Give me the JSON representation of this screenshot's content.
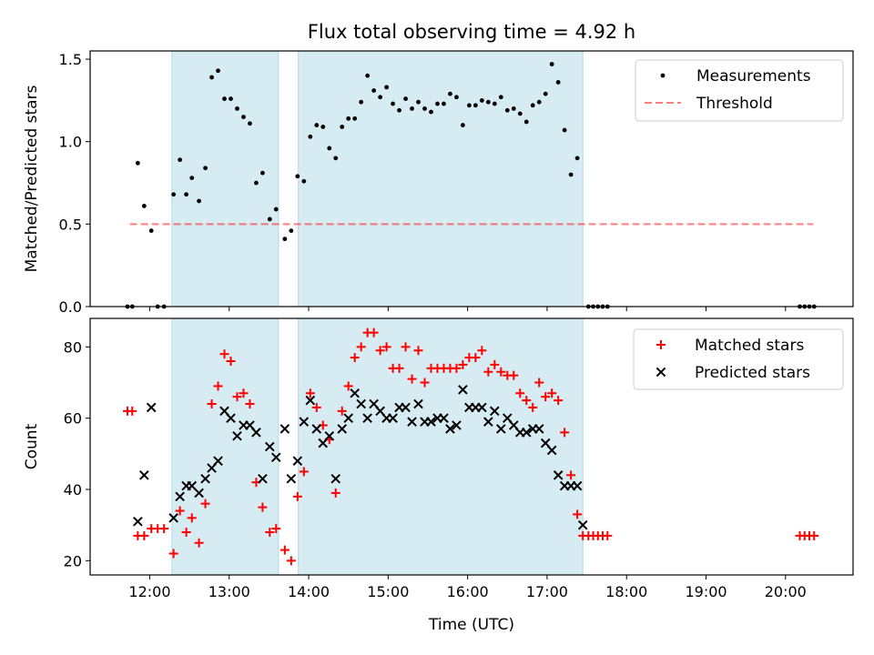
{
  "chart_data": {
    "title": "Flux total observing time = 4.92 h",
    "xlabel": "Time (UTC)",
    "x_unit": "hours UTC",
    "xlim": [
      11.25,
      20.85
    ],
    "x_ticks": [
      {
        "value": 12,
        "label": "12:00"
      },
      {
        "value": 13,
        "label": "13:00"
      },
      {
        "value": 14,
        "label": "14:00"
      },
      {
        "value": 15,
        "label": "15:00"
      },
      {
        "value": 16,
        "label": "16:00"
      },
      {
        "value": 17,
        "label": "17:00"
      },
      {
        "value": 18,
        "label": "18:00"
      },
      {
        "value": 19,
        "label": "19:00"
      },
      {
        "value": 20,
        "label": "20:00"
      }
    ],
    "observing_windows": [
      [
        12.28,
        13.62
      ],
      [
        13.87,
        17.45
      ]
    ],
    "panels": [
      {
        "type": "scatter",
        "ylabel": "Matched/Predicted stars",
        "ylim": [
          0,
          1.55
        ],
        "y_ticks": [
          {
            "value": 0,
            "label": "0.0"
          },
          {
            "value": 0.5,
            "label": "0.5"
          },
          {
            "value": 1.0,
            "label": "1.0"
          },
          {
            "value": 1.5,
            "label": "1.5"
          }
        ],
        "legend": [
          "Measurements",
          "Threshold"
        ],
        "legend_position": "top-right",
        "threshold": {
          "name": "Threshold",
          "value": 0.5,
          "x": [
            11.75,
            20.35
          ]
        },
        "measurements": {
          "name": "Measurements",
          "points": [
            [
              11.72,
              0
            ],
            [
              11.78,
              0
            ],
            [
              11.85,
              0.87
            ],
            [
              11.93,
              0.61
            ],
            [
              12.02,
              0.46
            ],
            [
              12.1,
              0
            ],
            [
              12.18,
              0
            ],
            [
              12.3,
              0.68
            ],
            [
              12.38,
              0.89
            ],
            [
              12.46,
              0.68
            ],
            [
              12.53,
              0.78
            ],
            [
              12.62,
              0.64
            ],
            [
              12.7,
              0.84
            ],
            [
              12.78,
              1.39
            ],
            [
              12.86,
              1.43
            ],
            [
              12.94,
              1.26
            ],
            [
              13.02,
              1.26
            ],
            [
              13.1,
              1.2
            ],
            [
              13.18,
              1.15
            ],
            [
              13.26,
              1.11
            ],
            [
              13.34,
              0.75
            ],
            [
              13.42,
              0.81
            ],
            [
              13.51,
              0.53
            ],
            [
              13.59,
              0.59
            ],
            [
              13.7,
              0.41
            ],
            [
              13.78,
              0.46
            ],
            [
              13.86,
              0.79
            ],
            [
              13.94,
              0.76
            ],
            [
              14.02,
              1.03
            ],
            [
              14.1,
              1.1
            ],
            [
              14.18,
              1.09
            ],
            [
              14.26,
              0.96
            ],
            [
              14.34,
              0.9
            ],
            [
              14.42,
              1.09
            ],
            [
              14.5,
              1.14
            ],
            [
              14.58,
              1.14
            ],
            [
              14.66,
              1.24
            ],
            [
              14.74,
              1.4
            ],
            [
              14.82,
              1.31
            ],
            [
              14.9,
              1.27
            ],
            [
              14.98,
              1.33
            ],
            [
              15.06,
              1.23
            ],
            [
              15.14,
              1.19
            ],
            [
              15.22,
              1.26
            ],
            [
              15.3,
              1.2
            ],
            [
              15.38,
              1.24
            ],
            [
              15.46,
              1.2
            ],
            [
              15.54,
              1.18
            ],
            [
              15.62,
              1.23
            ],
            [
              15.7,
              1.23
            ],
            [
              15.78,
              1.29
            ],
            [
              15.86,
              1.27
            ],
            [
              15.94,
              1.1
            ],
            [
              16.02,
              1.22
            ],
            [
              16.1,
              1.22
            ],
            [
              16.18,
              1.25
            ],
            [
              16.26,
              1.24
            ],
            [
              16.34,
              1.23
            ],
            [
              16.42,
              1.27
            ],
            [
              16.5,
              1.19
            ],
            [
              16.58,
              1.2
            ],
            [
              16.66,
              1.17
            ],
            [
              16.74,
              1.12
            ],
            [
              16.82,
              1.22
            ],
            [
              16.9,
              1.24
            ],
            [
              16.98,
              1.29
            ],
            [
              17.06,
              1.47
            ],
            [
              17.14,
              1.36
            ],
            [
              17.22,
              1.07
            ],
            [
              17.3,
              0.8
            ],
            [
              17.38,
              0.9
            ],
            [
              17.52,
              0
            ],
            [
              17.58,
              0
            ],
            [
              17.64,
              0
            ],
            [
              17.7,
              0
            ],
            [
              17.76,
              0
            ],
            [
              20.18,
              0
            ],
            [
              20.24,
              0
            ],
            [
              20.3,
              0
            ],
            [
              20.36,
              0
            ]
          ]
        }
      },
      {
        "type": "scatter",
        "ylabel": "Count",
        "ylim": [
          16,
          88
        ],
        "y_ticks": [
          {
            "value": 20,
            "label": "20"
          },
          {
            "value": 40,
            "label": "40"
          },
          {
            "value": 60,
            "label": "60"
          },
          {
            "value": 80,
            "label": "80"
          }
        ],
        "legend": [
          "Matched stars",
          "Predicted stars"
        ],
        "legend_position": "top-right",
        "series": [
          {
            "name": "Matched stars",
            "marker": "+",
            "color": "#ff0000",
            "points": [
              [
                11.72,
                62
              ],
              [
                11.78,
                62
              ],
              [
                11.85,
                27
              ],
              [
                11.93,
                27
              ],
              [
                12.02,
                29
              ],
              [
                12.1,
                29
              ],
              [
                12.18,
                29
              ],
              [
                12.3,
                22
              ],
              [
                12.38,
                34
              ],
              [
                12.46,
                28
              ],
              [
                12.53,
                32
              ],
              [
                12.62,
                25
              ],
              [
                12.7,
                36
              ],
              [
                12.78,
                64
              ],
              [
                12.86,
                69
              ],
              [
                12.94,
                78
              ],
              [
                13.02,
                76
              ],
              [
                13.1,
                66
              ],
              [
                13.18,
                67
              ],
              [
                13.26,
                64
              ],
              [
                13.34,
                42
              ],
              [
                13.42,
                35
              ],
              [
                13.51,
                28
              ],
              [
                13.59,
                29
              ],
              [
                13.7,
                23
              ],
              [
                13.78,
                20
              ],
              [
                13.86,
                38
              ],
              [
                13.94,
                45
              ],
              [
                14.02,
                67
              ],
              [
                14.1,
                63
              ],
              [
                14.18,
                58
              ],
              [
                14.26,
                54
              ],
              [
                14.34,
                39
              ],
              [
                14.42,
                62
              ],
              [
                14.5,
                69
              ],
              [
                14.58,
                77
              ],
              [
                14.66,
                80
              ],
              [
                14.74,
                84
              ],
              [
                14.82,
                84
              ],
              [
                14.9,
                79
              ],
              [
                14.98,
                80
              ],
              [
                15.06,
                74
              ],
              [
                15.14,
                74
              ],
              [
                15.22,
                80
              ],
              [
                15.3,
                71
              ],
              [
                15.38,
                79
              ],
              [
                15.46,
                70
              ],
              [
                15.54,
                74
              ],
              [
                15.62,
                74
              ],
              [
                15.7,
                74
              ],
              [
                15.78,
                74
              ],
              [
                15.86,
                74
              ],
              [
                15.94,
                75
              ],
              [
                16.02,
                77
              ],
              [
                16.1,
                77
              ],
              [
                16.18,
                79
              ],
              [
                16.26,
                73
              ],
              [
                16.34,
                75
              ],
              [
                16.42,
                73
              ],
              [
                16.5,
                72
              ],
              [
                16.58,
                72
              ],
              [
                16.66,
                67
              ],
              [
                16.74,
                65
              ],
              [
                16.82,
                63
              ],
              [
                16.9,
                70
              ],
              [
                16.98,
                66
              ],
              [
                17.06,
                67
              ],
              [
                17.14,
                65
              ],
              [
                17.22,
                56
              ],
              [
                17.3,
                44
              ],
              [
                17.38,
                33
              ],
              [
                17.45,
                27
              ],
              [
                17.52,
                27
              ],
              [
                17.58,
                27
              ],
              [
                17.64,
                27
              ],
              [
                17.7,
                27
              ],
              [
                17.76,
                27
              ],
              [
                20.18,
                27
              ],
              [
                20.24,
                27
              ],
              [
                20.3,
                27
              ],
              [
                20.36,
                27
              ]
            ]
          },
          {
            "name": "Predicted stars",
            "marker": "x",
            "color": "#000000",
            "points": [
              [
                11.85,
                31
              ],
              [
                11.93,
                44
              ],
              [
                12.02,
                63
              ],
              [
                12.3,
                32
              ],
              [
                12.38,
                38
              ],
              [
                12.46,
                41
              ],
              [
                12.53,
                41
              ],
              [
                12.62,
                39
              ],
              [
                12.7,
                43
              ],
              [
                12.78,
                46
              ],
              [
                12.86,
                48
              ],
              [
                12.94,
                62
              ],
              [
                13.02,
                60
              ],
              [
                13.1,
                55
              ],
              [
                13.18,
                58
              ],
              [
                13.26,
                58
              ],
              [
                13.34,
                56
              ],
              [
                13.42,
                43
              ],
              [
                13.51,
                52
              ],
              [
                13.59,
                49
              ],
              [
                13.7,
                57
              ],
              [
                13.78,
                43
              ],
              [
                13.86,
                48
              ],
              [
                13.94,
                59
              ],
              [
                14.02,
                65
              ],
              [
                14.1,
                57
              ],
              [
                14.18,
                53
              ],
              [
                14.26,
                55
              ],
              [
                14.34,
                43
              ],
              [
                14.42,
                57
              ],
              [
                14.5,
                60
              ],
              [
                14.58,
                67
              ],
              [
                14.66,
                64
              ],
              [
                14.74,
                60
              ],
              [
                14.82,
                64
              ],
              [
                14.9,
                62
              ],
              [
                14.98,
                60
              ],
              [
                15.06,
                60
              ],
              [
                15.14,
                63
              ],
              [
                15.22,
                63
              ],
              [
                15.3,
                59
              ],
              [
                15.38,
                64
              ],
              [
                15.46,
                59
              ],
              [
                15.54,
                59
              ],
              [
                15.62,
                60
              ],
              [
                15.7,
                60
              ],
              [
                15.78,
                57
              ],
              [
                15.86,
                58
              ],
              [
                15.94,
                68
              ],
              [
                16.02,
                63
              ],
              [
                16.1,
                63
              ],
              [
                16.18,
                63
              ],
              [
                16.26,
                59
              ],
              [
                16.34,
                62
              ],
              [
                16.42,
                57
              ],
              [
                16.5,
                60
              ],
              [
                16.58,
                58
              ],
              [
                16.66,
                56
              ],
              [
                16.74,
                56
              ],
              [
                16.82,
                57
              ],
              [
                16.9,
                57
              ],
              [
                16.98,
                53
              ],
              [
                17.06,
                51
              ],
              [
                17.14,
                44
              ],
              [
                17.22,
                41
              ],
              [
                17.3,
                41
              ],
              [
                17.38,
                41
              ],
              [
                17.45,
                30
              ]
            ]
          }
        ]
      }
    ]
  }
}
